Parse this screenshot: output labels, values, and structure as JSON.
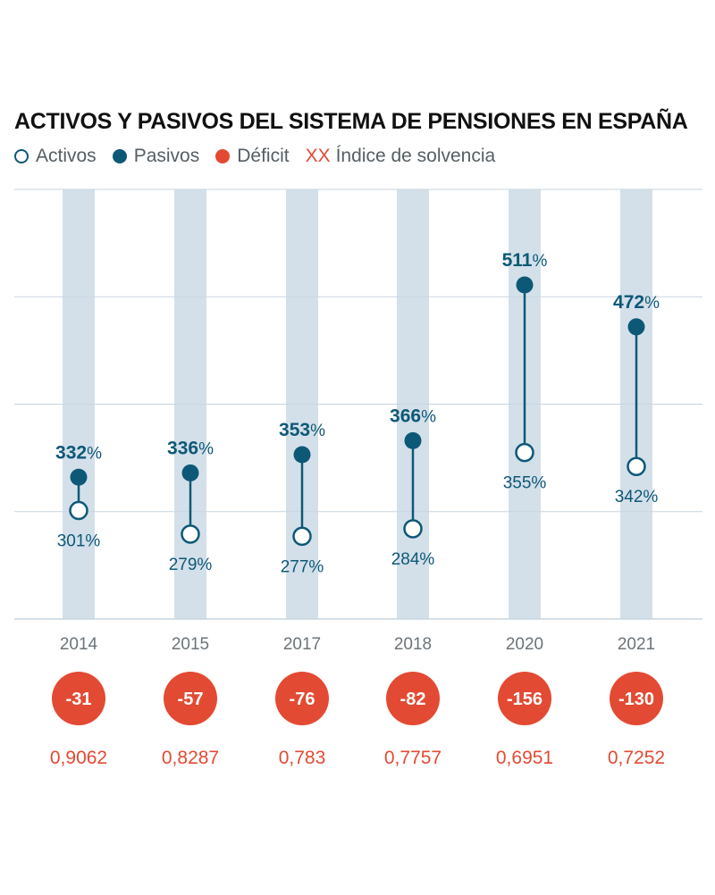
{
  "title": "ACTIVOS Y PASIVOS DEL SISTEMA DE PENSIONES EN ESPAÑA",
  "legend": {
    "activos": "Activos",
    "pasivos": "Pasivos",
    "deficit": "Déficit",
    "indice_marker": "XX",
    "indice": "Índice de solvencia"
  },
  "colors": {
    "navy": "#0e5877",
    "red": "#e34a33",
    "band": "#d3e0ea",
    "grid": "#c9d6df"
  },
  "chart_data": {
    "type": "dumbbell",
    "title": "ACTIVOS Y PASIVOS DEL SISTEMA DE PENSIONES EN ESPAÑA",
    "unit": "%",
    "ylim": [
      200,
      600
    ],
    "gridlines": [
      200,
      300,
      400,
      500,
      600
    ],
    "categories": [
      "2014",
      "2015",
      "2017",
      "2018",
      "2020",
      "2021"
    ],
    "series": [
      {
        "name": "Pasivos",
        "values": [
          332,
          336,
          353,
          366,
          511,
          472
        ]
      },
      {
        "name": "Activos",
        "values": [
          301,
          279,
          277,
          284,
          355,
          342
        ]
      }
    ],
    "deficit": [
      "-31",
      "-57",
      "-76",
      "-82",
      "-156",
      "-130"
    ],
    "indice_solvencia": [
      "0,9062",
      "0,8287",
      "0,783",
      "0,7757",
      "0,6951",
      "0,7252"
    ]
  }
}
